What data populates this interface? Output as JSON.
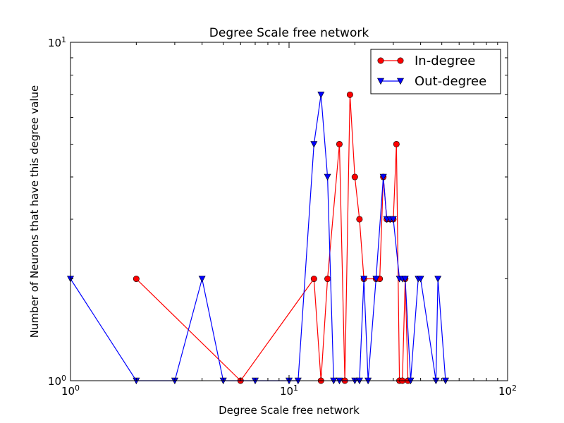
{
  "chart_data": {
    "type": "line",
    "title": "Degree Scale free network",
    "xlabel": "Degree Scale free network",
    "ylabel": "Number of Neurons that have this degree value",
    "xscale": "log",
    "yscale": "log",
    "xlim": [
      1,
      100
    ],
    "ylim": [
      1,
      10
    ],
    "x_ticks": [
      {
        "value": 1,
        "base": "10",
        "exp": "0"
      },
      {
        "value": 10,
        "base": "10",
        "exp": "1"
      },
      {
        "value": 100,
        "base": "10",
        "exp": "2"
      }
    ],
    "y_ticks": [
      {
        "value": 1,
        "base": "10",
        "exp": "0"
      },
      {
        "value": 10,
        "base": "10",
        "exp": "1"
      }
    ],
    "legend_position": "top-right",
    "series": [
      {
        "name": "In-degree",
        "color": "#ff0000",
        "marker": "circle",
        "x": [
          2,
          6,
          13,
          14,
          15,
          17,
          18,
          19,
          20,
          21,
          22,
          25,
          26,
          27,
          28,
          29,
          30,
          31,
          32,
          33,
          34,
          35
        ],
        "y": [
          2,
          1,
          2,
          1,
          2,
          5,
          1,
          7,
          4,
          3,
          2,
          2,
          2,
          4,
          3,
          3,
          3,
          5,
          1,
          1,
          2,
          1
        ]
      },
      {
        "name": "Out-degree",
        "color": "#0000ff",
        "marker": "triangle-down",
        "x": [
          1,
          2,
          3,
          4,
          5,
          7,
          10,
          11,
          13,
          14,
          15,
          16,
          17,
          20,
          21,
          22,
          23,
          25,
          27,
          28,
          29,
          30,
          32,
          33,
          34,
          36,
          39,
          40,
          47,
          48,
          52
        ],
        "y": [
          2,
          1,
          1,
          2,
          1,
          1,
          1,
          1,
          5,
          7,
          4,
          1,
          1,
          1,
          1,
          2,
          1,
          2,
          4,
          3,
          3,
          3,
          2,
          2,
          2,
          1,
          2,
          2,
          1,
          2,
          1
        ]
      }
    ]
  }
}
